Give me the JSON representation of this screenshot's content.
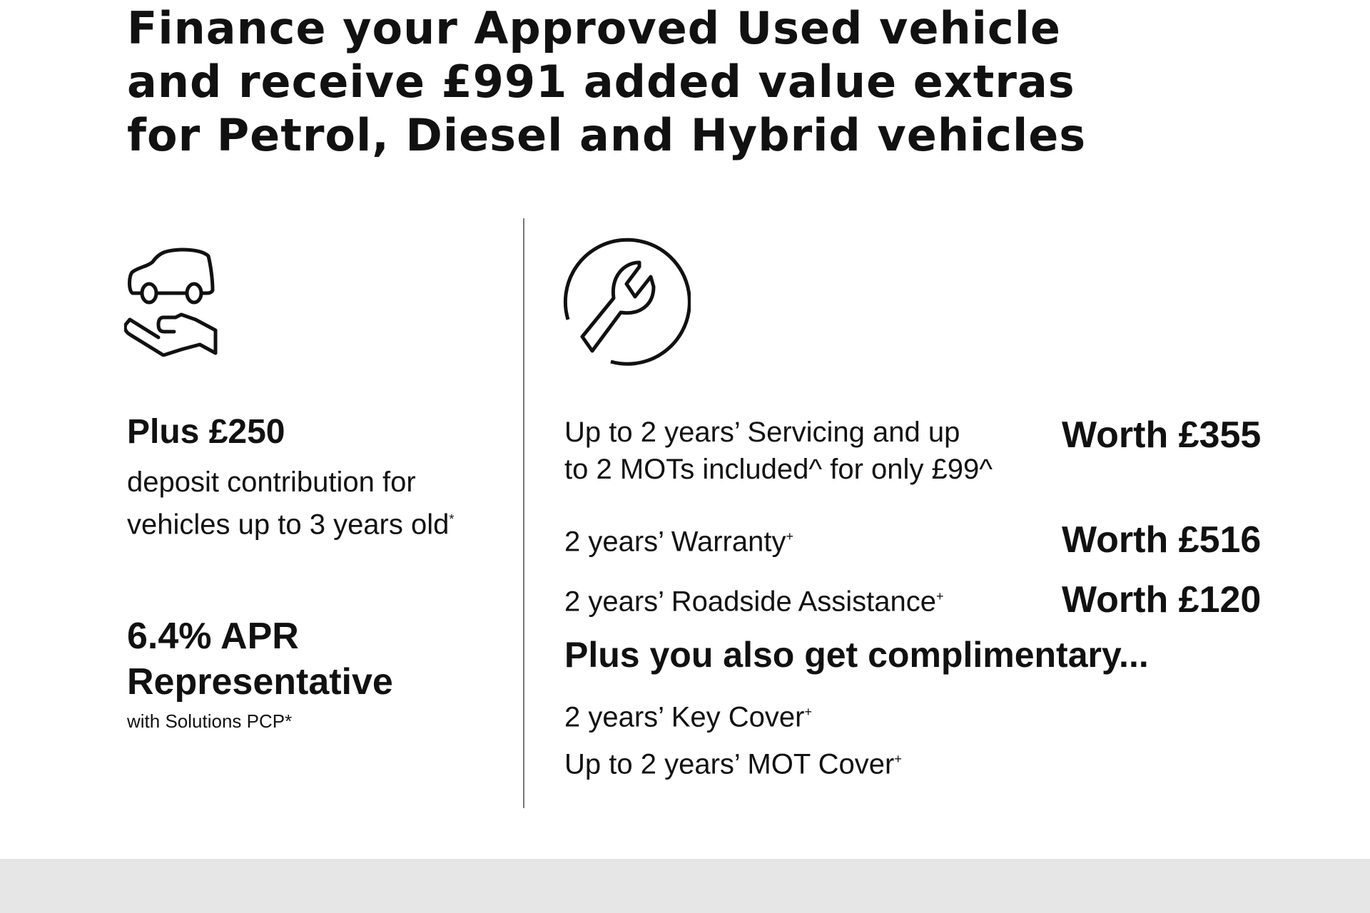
{
  "headline": {
    "lines": [
      "Finance your Approved Used vehicle",
      "and receive £991 added value extras",
      "for Petrol, Diesel and Hybrid vehicles"
    ]
  },
  "left": {
    "icon": "car-in-hand-icon",
    "deposit": {
      "heading": "Plus £250",
      "line1": "deposit contribution for",
      "line2": "vehicles up to 3 years old",
      "mark": "*"
    },
    "apr": {
      "line1": "6.4% APR",
      "line2": "Representative",
      "note": "with Solutions PCP*"
    }
  },
  "right": {
    "icon": "wrench-circle-icon",
    "items": [
      {
        "line1": "Up to 2 years’ Servicing and up",
        "line2": "to 2 MOTs included^ for only £99^",
        "worth": "Worth £355"
      },
      {
        "label": "2 years’ Warranty",
        "mark": "+",
        "worth": "Worth £516"
      },
      {
        "label": "2 years’ Roadside Assistance",
        "mark": "+",
        "worth": "Worth £120"
      }
    ],
    "complimentary_heading": "Plus you also get complimentary...",
    "complimentary": [
      {
        "label": "2 years’ Key Cover",
        "mark": "+"
      },
      {
        "label": "Up to 2 years’ MOT Cover",
        "mark": "+"
      }
    ]
  },
  "colors": {
    "text": "#111111",
    "divider": "#777777",
    "footer_band": "#e6e6e6"
  }
}
